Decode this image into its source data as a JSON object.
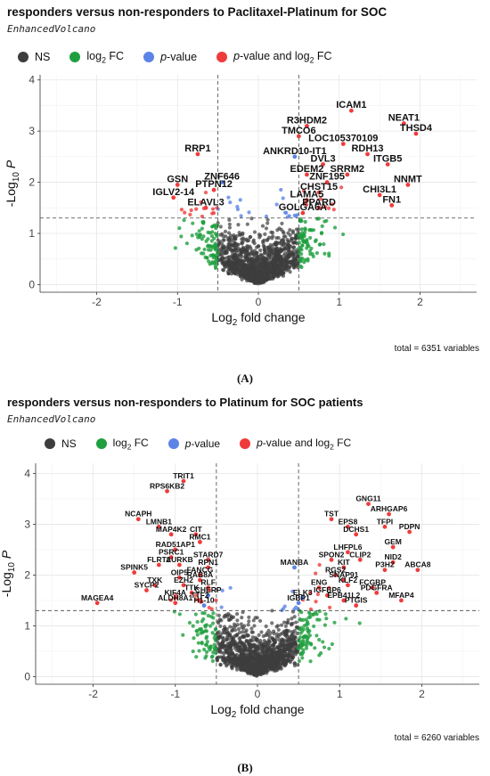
{
  "panels": [
    {
      "label": "(A)",
      "title": "responders versus non-responders to Paclitaxel-Platinum for SOC",
      "subtitle": "EnhancedVolcano",
      "total": "total = 6351 variables",
      "legend": [
        {
          "name": "NS",
          "color": "#3d3d3d"
        },
        {
          "name": "log2 FC",
          "color": "#1f9f3f"
        },
        {
          "name": "p-value",
          "color": "#5b84e6"
        },
        {
          "name": "p-value and log2 FC",
          "color": "#ef3b3b"
        }
      ],
      "chart_data": {
        "type": "scatter",
        "xlabel": "Log2 fold change",
        "ylabel": "-Log10 P",
        "xlim": [
          -2.7,
          2.7
        ],
        "ylim": [
          -0.15,
          4.1
        ],
        "x_ticks": [
          -2,
          -1,
          0,
          1,
          2
        ],
        "y_ticks": [
          0,
          1,
          2,
          3,
          4
        ],
        "fc_cutoffs": [
          -0.5,
          0.5
        ],
        "p_cutoff": 1.3,
        "grid": true,
        "labeled_points": [
          {
            "label": "ICAM1",
            "x": 1.15,
            "y": 3.4,
            "category": "p-value and log2 FC"
          },
          {
            "label": "NEAT1",
            "x": 1.8,
            "y": 3.15,
            "category": "p-value and log2 FC"
          },
          {
            "label": "THSD4",
            "x": 1.95,
            "y": 2.95,
            "category": "p-value and log2 FC"
          },
          {
            "label": "R3HDM2",
            "x": 0.6,
            "y": 3.1,
            "category": "p-value and log2 FC"
          },
          {
            "label": "TMCO6",
            "x": 0.5,
            "y": 2.9,
            "category": "p-value and log2 FC"
          },
          {
            "label": "LOC105370109",
            "x": 1.05,
            "y": 2.75,
            "category": "p-value and log2 FC"
          },
          {
            "label": "RDH13",
            "x": 1.35,
            "y": 2.55,
            "category": "p-value and log2 FC"
          },
          {
            "label": "ANKRD10-IT1",
            "x": 0.45,
            "y": 2.5,
            "category": "p-value"
          },
          {
            "label": "DVL3",
            "x": 0.8,
            "y": 2.35,
            "category": "p-value and log2 FC"
          },
          {
            "label": "ITGB5",
            "x": 1.6,
            "y": 2.35,
            "category": "p-value and log2 FC"
          },
          {
            "label": "RRP1",
            "x": -0.75,
            "y": 2.55,
            "category": "p-value and log2 FC"
          },
          {
            "label": "EDEM2",
            "x": 0.6,
            "y": 2.15,
            "category": "p-value and log2 FC"
          },
          {
            "label": "SRRM2",
            "x": 1.1,
            "y": 2.15,
            "category": "p-value and log2 FC"
          },
          {
            "label": "ZNF195",
            "x": 0.85,
            "y": 2.0,
            "category": "p-value and log2 FC"
          },
          {
            "label": "NNMT",
            "x": 1.85,
            "y": 1.95,
            "category": "p-value and log2 FC"
          },
          {
            "label": "ZNF646",
            "x": -0.45,
            "y": 2.0,
            "category": "p-value"
          },
          {
            "label": "GSN",
            "x": -1.0,
            "y": 1.95,
            "category": "p-value and log2 FC"
          },
          {
            "label": "PTPN12",
            "x": -0.55,
            "y": 1.85,
            "category": "p-value and log2 FC"
          },
          {
            "label": "CHST15",
            "x": 0.75,
            "y": 1.8,
            "category": "p-value and log2 FC"
          },
          {
            "label": "CHI3L1",
            "x": 1.5,
            "y": 1.75,
            "category": "p-value and log2 FC"
          },
          {
            "label": "IGLV2-14",
            "x": -1.05,
            "y": 1.7,
            "category": "p-value and log2 FC"
          },
          {
            "label": "LAMA5",
            "x": 0.6,
            "y": 1.65,
            "category": "p-value and log2 FC"
          },
          {
            "label": "FN1",
            "x": 1.65,
            "y": 1.55,
            "category": "p-value and log2 FC"
          },
          {
            "label": "PPARD",
            "x": 0.75,
            "y": 1.5,
            "category": "p-value and log2 FC"
          },
          {
            "label": "ELAVL3",
            "x": -0.65,
            "y": 1.5,
            "category": "p-value and log2 FC"
          },
          {
            "label": "GOLGA6A",
            "x": 0.55,
            "y": 1.4,
            "category": "p-value and log2 FC"
          }
        ]
      }
    },
    {
      "label": "(B)",
      "title": "responders versus non-responders to Platinum for SOC patients",
      "subtitle": "EnhancedVolcano",
      "total": "total = 6260 variables",
      "legend": [
        {
          "name": "NS",
          "color": "#3d3d3d"
        },
        {
          "name": "log2 FC",
          "color": "#1f9f3f"
        },
        {
          "name": "p-value",
          "color": "#5b84e6"
        },
        {
          "name": "p-value and log2 FC",
          "color": "#ef3b3b"
        }
      ],
      "chart_data": {
        "type": "scatter",
        "xlabel": "Log2 fold change",
        "ylabel": "-Log10 P",
        "xlim": [
          -2.7,
          2.7
        ],
        "ylim": [
          -0.15,
          4.2
        ],
        "x_ticks": [
          -2,
          -1,
          0,
          1,
          2
        ],
        "y_ticks": [
          0,
          1,
          2,
          3,
          4
        ],
        "fc_cutoffs": [
          -0.5,
          0.5
        ],
        "p_cutoff": 1.3,
        "grid": true,
        "labeled_points": [
          {
            "label": "TRIT1",
            "x": -0.9,
            "y": 3.85,
            "category": "p-value and log2 FC"
          },
          {
            "label": "RPS6KB2",
            "x": -1.1,
            "y": 3.65,
            "category": "p-value and log2 FC"
          },
          {
            "label": "GNG11",
            "x": 1.35,
            "y": 3.4,
            "category": "p-value and log2 FC"
          },
          {
            "label": "ARHGAP6",
            "x": 1.6,
            "y": 3.2,
            "category": "p-value and log2 FC"
          },
          {
            "label": "NCAPH",
            "x": -1.45,
            "y": 3.1,
            "category": "p-value and log2 FC"
          },
          {
            "label": "TST",
            "x": 0.9,
            "y": 3.1,
            "category": "p-value and log2 FC"
          },
          {
            "label": "TFPI",
            "x": 1.55,
            "y": 2.95,
            "category": "p-value and log2 FC"
          },
          {
            "label": "LMNB1",
            "x": -1.2,
            "y": 2.95,
            "category": "p-value and log2 FC"
          },
          {
            "label": "EPS8",
            "x": 1.1,
            "y": 2.95,
            "category": "p-value and log2 FC"
          },
          {
            "label": "PDPN",
            "x": 1.85,
            "y": 2.85,
            "category": "p-value and log2 FC"
          },
          {
            "label": "MAP4K2",
            "x": -1.05,
            "y": 2.8,
            "category": "p-value and log2 FC"
          },
          {
            "label": "CIT",
            "x": -0.75,
            "y": 2.8,
            "category": "p-value and log2 FC"
          },
          {
            "label": "DCHS1",
            "x": 1.2,
            "y": 2.8,
            "category": "p-value and log2 FC"
          },
          {
            "label": "RMC1",
            "x": -0.7,
            "y": 2.65,
            "category": "p-value and log2 FC"
          },
          {
            "label": "GEM",
            "x": 1.65,
            "y": 2.55,
            "category": "p-value and log2 FC"
          },
          {
            "label": "RAD51AP1",
            "x": -1.0,
            "y": 2.5,
            "category": "p-value and log2 FC"
          },
          {
            "label": "LHFPL6",
            "x": 1.1,
            "y": 2.45,
            "category": "p-value and log2 FC"
          },
          {
            "label": "PSRC1",
            "x": -1.05,
            "y": 2.35,
            "category": "p-value and log2 FC"
          },
          {
            "label": "STARD7",
            "x": -0.6,
            "y": 2.3,
            "category": "p-value and log2 FC"
          },
          {
            "label": "SPON2",
            "x": 0.9,
            "y": 2.3,
            "category": "p-value and log2 FC"
          },
          {
            "label": "CLIP2",
            "x": 1.25,
            "y": 2.3,
            "category": "p-value and log2 FC"
          },
          {
            "label": "NID2",
            "x": 1.65,
            "y": 2.25,
            "category": "p-value and log2 FC"
          },
          {
            "label": "FLRT2",
            "x": -1.2,
            "y": 2.2,
            "category": "p-value and log2 FC"
          },
          {
            "label": "AURKB",
            "x": -0.95,
            "y": 2.2,
            "category": "p-value and log2 FC"
          },
          {
            "label": "RPN1",
            "x": -0.6,
            "y": 2.15,
            "category": "p-value and log2 FC"
          },
          {
            "label": "MANBA",
            "x": 0.45,
            "y": 2.15,
            "category": "p-value"
          },
          {
            "label": "KIT",
            "x": 1.05,
            "y": 2.15,
            "category": "p-value and log2 FC"
          },
          {
            "label": "ABCA8",
            "x": 1.95,
            "y": 2.1,
            "category": "p-value and log2 FC"
          },
          {
            "label": "P3H2",
            "x": 1.55,
            "y": 2.1,
            "category": "p-value and log2 FC"
          },
          {
            "label": "SPINK5",
            "x": -1.5,
            "y": 2.05,
            "category": "p-value and log2 FC"
          },
          {
            "label": "FANCG",
            "x": -0.7,
            "y": 2.0,
            "category": "p-value and log2 FC"
          },
          {
            "label": "RGS2",
            "x": 0.95,
            "y": 2.0,
            "category": "p-value and log2 FC"
          },
          {
            "label": "OIP5",
            "x": -0.95,
            "y": 1.95,
            "category": "p-value and log2 FC"
          },
          {
            "label": "RAB8A",
            "x": -0.7,
            "y": 1.9,
            "category": "p-value and log2 FC"
          },
          {
            "label": "SNAP91",
            "x": 1.05,
            "y": 1.9,
            "category": "p-value and log2 FC"
          },
          {
            "label": "TXK",
            "x": -1.25,
            "y": 1.8,
            "category": "p-value and log2 FC"
          },
          {
            "label": "EZH2",
            "x": -0.9,
            "y": 1.8,
            "category": "p-value and log2 FC"
          },
          {
            "label": "RLF",
            "x": -0.6,
            "y": 1.75,
            "category": "p-value and log2 FC"
          },
          {
            "label": "KLF2",
            "x": 1.1,
            "y": 1.8,
            "category": "p-value and log2 FC"
          },
          {
            "label": "ENG",
            "x": 0.75,
            "y": 1.75,
            "category": "p-value and log2 FC"
          },
          {
            "label": "FCGBP",
            "x": 1.4,
            "y": 1.75,
            "category": "p-value and log2 FC"
          },
          {
            "label": "SYCP2",
            "x": -1.35,
            "y": 1.7,
            "category": "p-value and log2 FC"
          },
          {
            "label": "TTK",
            "x": -0.8,
            "y": 1.65,
            "category": "p-value and log2 FC"
          },
          {
            "label": "PDGFRA",
            "x": 1.45,
            "y": 1.65,
            "category": "p-value and log2 FC"
          },
          {
            "label": "CHERP",
            "x": -0.6,
            "y": 1.6,
            "category": "p-value"
          },
          {
            "label": "IGFBP6",
            "x": 0.85,
            "y": 1.6,
            "category": "p-value and log2 FC"
          },
          {
            "label": "KIF4A",
            "x": -1.0,
            "y": 1.55,
            "category": "p-value and log2 FC"
          },
          {
            "label": "ELK3",
            "x": 0.55,
            "y": 1.55,
            "category": "p-value"
          },
          {
            "label": "TTF2",
            "x": -0.7,
            "y": 1.5,
            "category": "p-value and log2 FC"
          },
          {
            "label": "EPB41L2",
            "x": 1.05,
            "y": 1.5,
            "category": "p-value and log2 FC"
          },
          {
            "label": "MFAP4",
            "x": 1.75,
            "y": 1.5,
            "category": "p-value and log2 FC"
          },
          {
            "label": "MAGEA4",
            "x": -1.95,
            "y": 1.45,
            "category": "p-value and log2 FC"
          },
          {
            "label": "ALDH8A1",
            "x": -1.0,
            "y": 1.45,
            "category": "p-value and log2 FC"
          },
          {
            "label": "H1-10",
            "x": -0.65,
            "y": 1.4,
            "category": "p-value"
          },
          {
            "label": "IGBP1",
            "x": 0.5,
            "y": 1.45,
            "category": "p-value"
          },
          {
            "label": "PTGIS",
            "x": 1.2,
            "y": 1.4,
            "category": "p-value and log2 FC"
          }
        ]
      }
    }
  ]
}
